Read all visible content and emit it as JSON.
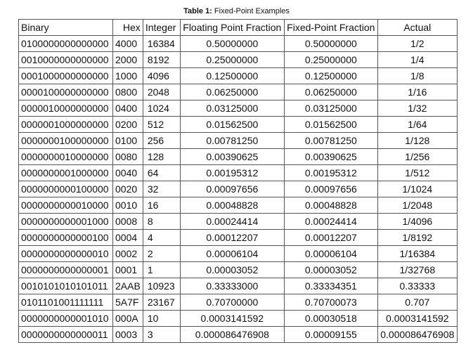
{
  "caption": {
    "label": "Table 1:",
    "text": " Fixed-Point Examples"
  },
  "table": {
    "headers": [
      "Binary",
      "Hex",
      "Integer",
      "Floating Point Fraction",
      "Fixed-Point Fraction",
      "Actual"
    ],
    "rows": [
      [
        "0100000000000000",
        "4000",
        "16384",
        "0.50000000",
        "0.50000000",
        "1/2"
      ],
      [
        "0010000000000000",
        "2000",
        "8192",
        "0.25000000",
        "0.25000000",
        "1/4"
      ],
      [
        "0001000000000000",
        "1000",
        "4096",
        "0.12500000",
        "0.12500000",
        "1/8"
      ],
      [
        "0000100000000000",
        "0800",
        "2048",
        "0.06250000",
        "0.06250000",
        "1/16"
      ],
      [
        "0000010000000000",
        "0400",
        "1024",
        "0.03125000",
        "0.03125000",
        "1/32"
      ],
      [
        "0000001000000000",
        "0200",
        "512",
        "0.01562500",
        "0.01562500",
        "1/64"
      ],
      [
        "0000000100000000",
        "0100",
        "256",
        "0.00781250",
        "0.00781250",
        "1/128"
      ],
      [
        "0000000010000000",
        "0080",
        "128",
        "0.00390625",
        "0.00390625",
        "1/256"
      ],
      [
        "0000000001000000",
        "0040",
        "64",
        "0.00195312",
        "0.00195312",
        "1/512"
      ],
      [
        "0000000000100000",
        "0020",
        "32",
        "0.00097656",
        "0.00097656",
        "1/1024"
      ],
      [
        "0000000000010000",
        "0010",
        "16",
        "0.00048828",
        "0.00048828",
        "1/2048"
      ],
      [
        "0000000000001000",
        "0008",
        "8",
        "0.00024414",
        "0.00024414",
        "1/4096"
      ],
      [
        "0000000000000100",
        "0004",
        "4",
        "0.00012207",
        "0.00012207",
        "1/8192"
      ],
      [
        "0000000000000010",
        "0002",
        "2",
        "0.00006104",
        "0.00006104",
        "1/16384"
      ],
      [
        "0000000000000001",
        "0001",
        "1",
        "0.00003052",
        "0.00003052",
        "1/32768"
      ],
      [
        "0010101010101011",
        "2AAB",
        "10923",
        "0.33333000",
        "0.33334351",
        "0.33333"
      ],
      [
        "0101101001111111",
        "5A7F",
        "23167",
        "0.70700000",
        "0.70700073",
        "0.707"
      ],
      [
        "0000000000001010",
        "000A",
        "10",
        "0.0003141592",
        "0.00030518",
        "0.0003141592"
      ],
      [
        "0000000000000011",
        "0003",
        "3",
        "0.000086476908",
        "0.00009155",
        "0.000086476908"
      ]
    ]
  }
}
